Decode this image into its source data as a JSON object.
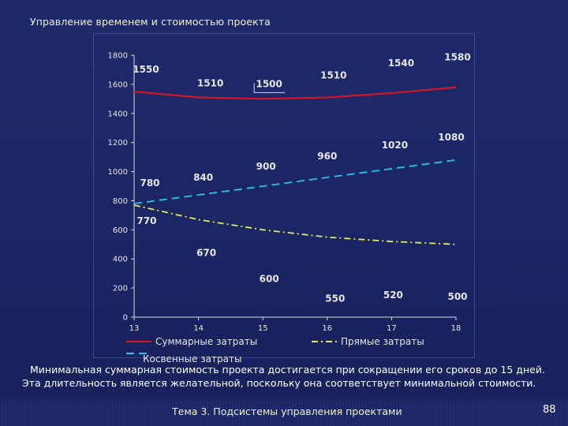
{
  "slide": {
    "title": "Управление временем и стоимостью проекта",
    "caption_line1": "Минимальная суммарная стоимость проекта достигается при сокращении его сроков до 15 дней.",
    "caption_line2": "Эта длительность является желательной, поскольку она соответствует минимальной стоимости.",
    "footer": "Тема 3. Подсистемы управления проектами",
    "page_number": "88"
  },
  "chart_data": {
    "type": "line",
    "x": [
      13,
      14,
      15,
      16,
      17,
      18
    ],
    "x_tick_labels": [
      "13",
      "14",
      "15",
      "16",
      "17",
      "18"
    ],
    "ylim": [
      0,
      1800
    ],
    "y_ticks": [
      0,
      200,
      400,
      600,
      800,
      1000,
      1200,
      1400,
      1600,
      1800
    ],
    "y_tick_labels": [
      "0",
      "200",
      "400",
      "600",
      "800",
      "1000",
      "1200",
      "1400",
      "1600",
      "1800"
    ],
    "grid": false,
    "legend_position": "bottom",
    "series": [
      {
        "name": "Суммарные затраты",
        "values": [
          1550,
          1510,
          1500,
          1510,
          1540,
          1580
        ],
        "labels": [
          "1550",
          "1510",
          "1500",
          "1510",
          "1540",
          "1580"
        ],
        "color": "#e0141e",
        "style": "solid"
      },
      {
        "name": "Прямые затраты",
        "values": [
          770,
          670,
          600,
          550,
          520,
          500
        ],
        "labels": [
          "770",
          "670",
          "600",
          "550",
          "520",
          "500"
        ],
        "color": "#e8e85a",
        "style": "dashdot"
      },
      {
        "name": "Косвенные затраты",
        "values": [
          780,
          840,
          900,
          960,
          1020,
          1080
        ],
        "labels": [
          "780",
          "840",
          "900",
          "960",
          "1020",
          "1080"
        ],
        "color": "#22c8ee",
        "style": "dashed"
      }
    ]
  }
}
